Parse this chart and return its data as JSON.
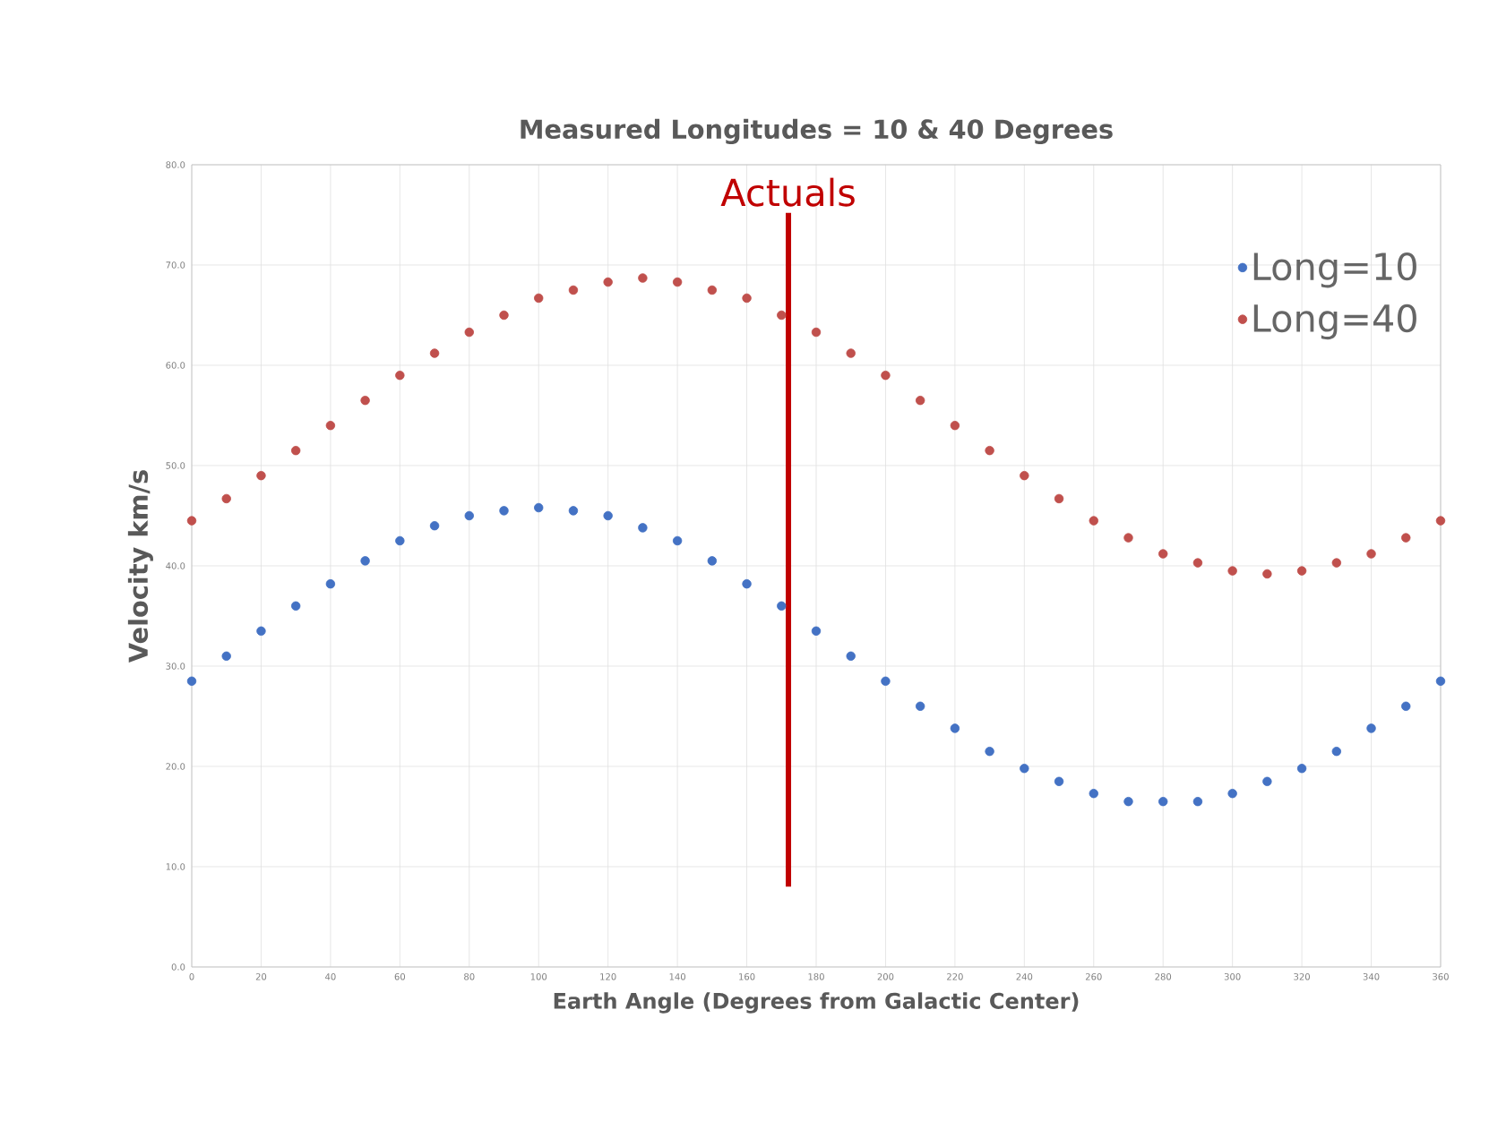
{
  "chart_data": {
    "type": "scatter",
    "title": "Measured Longitudes = 10 & 40  Degrees",
    "xlabel": "Earth Angle (Degrees from Galactic Center)",
    "ylabel": "Velocity km/s",
    "x": [
      0,
      10,
      20,
      30,
      40,
      50,
      60,
      70,
      80,
      90,
      100,
      110,
      120,
      130,
      140,
      150,
      160,
      170,
      180,
      190,
      200,
      210,
      220,
      230,
      240,
      250,
      260,
      270,
      280,
      290,
      300,
      310,
      320,
      330,
      340,
      350,
      360
    ],
    "series": [
      {
        "name": "Long=10",
        "color": "#4472c4",
        "values": [
          28.5,
          31,
          33.5,
          36,
          38.2,
          40.5,
          42.5,
          44,
          45,
          45.5,
          45.8,
          45.5,
          45,
          43.8,
          42.5,
          40.5,
          38.2,
          36,
          33.5,
          31,
          28.5,
          26,
          23.8,
          21.5,
          19.8,
          18.5,
          17.3,
          16.5,
          16.5,
          16.5,
          17.3,
          18.5,
          19.8,
          21.5,
          23.8,
          26,
          28.5
        ]
      },
      {
        "name": "Long=40",
        "color": "#c0504d",
        "values": [
          44.5,
          46.7,
          49,
          51.5,
          54,
          56.5,
          59,
          61.2,
          63.3,
          65,
          66.7,
          67.5,
          68.3,
          68.7,
          68.3,
          67.5,
          66.7,
          65,
          63.3,
          61.2,
          59,
          56.5,
          54,
          51.5,
          49,
          46.7,
          44.5,
          42.8,
          41.2,
          40.3,
          39.5,
          39.2,
          39.5,
          40.3,
          41.2,
          42.8,
          44.5
        ]
      }
    ],
    "xlim": [
      0,
      360
    ],
    "ylim": [
      0,
      80
    ],
    "xticks": [
      0,
      20,
      40,
      60,
      80,
      100,
      120,
      140,
      160,
      180,
      200,
      220,
      240,
      260,
      280,
      300,
      320,
      340,
      360
    ],
    "yticks": [
      {
        "value": 0,
        "label": "0.0"
      },
      {
        "value": 10,
        "label": "10.0"
      },
      {
        "value": 20,
        "label": "20.0"
      },
      {
        "value": 30,
        "label": "30.0"
      },
      {
        "value": 40,
        "label": "40.0"
      },
      {
        "value": 50,
        "label": "50.0"
      },
      {
        "value": 60,
        "label": "60.0"
      },
      {
        "value": 70,
        "label": "70.0"
      },
      {
        "value": 80,
        "label": "80.0"
      }
    ],
    "ref_lines": [
      {
        "axis": "x",
        "value": 172,
        "label": "Actuals",
        "color": "#c00000"
      }
    ],
    "grid": true,
    "legend": "top right"
  }
}
